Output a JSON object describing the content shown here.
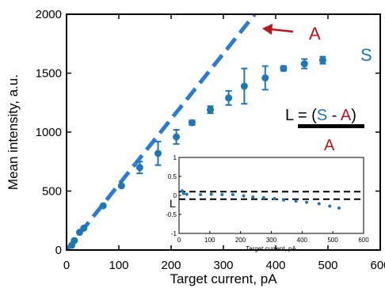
{
  "chart_data": [
    {
      "type": "scatter",
      "xlabel": "Target current, pA",
      "ylabel": "Mean intensity, a.u.",
      "xlim": [
        0,
        600
      ],
      "ylim": [
        0,
        2000
      ],
      "xticks": [
        "0",
        "100",
        "200",
        "300",
        "400",
        "500",
        "600"
      ],
      "yticks": [
        "0",
        "500",
        "1000",
        "1500",
        "2000"
      ],
      "series": [
        {
          "name": "S",
          "color": "#1f77b4",
          "style": "markers-with-errorbars",
          "points": [
            {
              "x": 10,
              "y": 40,
              "err": 0
            },
            {
              "x": 15,
              "y": 80,
              "err": 0
            },
            {
              "x": 25,
              "y": 150,
              "err": 0
            },
            {
              "x": 33,
              "y": 185,
              "err": 0
            },
            {
              "x": 70,
              "y": 375,
              "err": 0
            },
            {
              "x": 105,
              "y": 545,
              "err": 0
            },
            {
              "x": 140,
              "y": 700,
              "err": 50
            },
            {
              "x": 175,
              "y": 820,
              "err": 100
            },
            {
              "x": 210,
              "y": 960,
              "err": 60
            },
            {
              "x": 240,
              "y": 1080,
              "err": 20
            },
            {
              "x": 275,
              "y": 1190,
              "err": 30
            },
            {
              "x": 310,
              "y": 1290,
              "err": 60
            },
            {
              "x": 340,
              "y": 1390,
              "err": 150
            },
            {
              "x": 380,
              "y": 1460,
              "err": 100
            },
            {
              "x": 415,
              "y": 1540,
              "err": 20
            },
            {
              "x": 455,
              "y": 1580,
              "err": 40
            },
            {
              "x": 490,
              "y": 1610,
              "err": 30
            }
          ]
        },
        {
          "name": "A",
          "color": "#2b7bd4",
          "style": "dashed-line",
          "points": [
            {
              "x": 0,
              "y": 0
            },
            {
              "x": 360,
              "y": 2000
            }
          ]
        }
      ],
      "annotations": {
        "arrow_label": "A",
        "series_label": "S",
        "formula": {
          "lhs": "L = (",
          "s": "S",
          "minus": " - ",
          "a": "A",
          "close": ")",
          "denominator": "A"
        },
        "colors": {
          "s": "#1f77b4",
          "a": "#c0141c",
          "text": "#000000"
        }
      }
    },
    {
      "type": "scatter",
      "xlabel": "Target current, pA",
      "ylabel": "L",
      "xlim": [
        0,
        600
      ],
      "ylim": [
        -1,
        1
      ],
      "xticks": [
        "0",
        "100",
        "200",
        "300",
        "400",
        "500",
        "600"
      ],
      "yticks": [
        "-1",
        "-0.5",
        "0",
        "0.5",
        "1"
      ],
      "reference_lines": [
        0.1,
        -0.1
      ],
      "series": [
        {
          "color": "#1f77b4",
          "points": [
            {
              "x": 10,
              "y": 0.12
            },
            {
              "x": 15,
              "y": 0.05
            },
            {
              "x": 25,
              "y": 0.03
            },
            {
              "x": 70,
              "y": 0.02
            },
            {
              "x": 105,
              "y": 0.03
            },
            {
              "x": 140,
              "y": 0.02
            },
            {
              "x": 175,
              "y": 0.02
            },
            {
              "x": 210,
              "y": -0.01
            },
            {
              "x": 240,
              "y": -0.04
            },
            {
              "x": 275,
              "y": -0.06
            },
            {
              "x": 310,
              "y": -0.08
            },
            {
              "x": 340,
              "y": -0.12
            },
            {
              "x": 380,
              "y": -0.15
            },
            {
              "x": 415,
              "y": -0.18
            },
            {
              "x": 455,
              "y": -0.22
            },
            {
              "x": 490,
              "y": -0.28
            },
            {
              "x": 520,
              "y": -0.33
            }
          ]
        }
      ]
    }
  ]
}
